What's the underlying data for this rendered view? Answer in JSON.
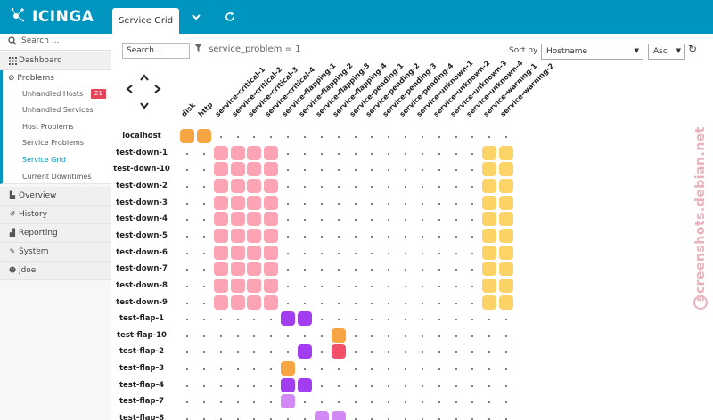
{
  "brand": "ICINGA",
  "tabs": {
    "active_label": "Service Grid"
  },
  "sidebar": {
    "search_label": "Search ...",
    "dashboard": "Dashboard",
    "problems": {
      "label": "Problems",
      "items": [
        {
          "label": "Unhandled Hosts",
          "badge": "21"
        },
        {
          "label": "Unhandled Services"
        },
        {
          "label": "Host Problems"
        },
        {
          "label": "Service Problems"
        },
        {
          "label": "Service Grid",
          "active": true
        },
        {
          "label": "Current Downtimes"
        }
      ]
    },
    "items": [
      {
        "label": "Overview"
      },
      {
        "label": "History"
      },
      {
        "label": "Reporting"
      },
      {
        "label": "System"
      },
      {
        "label": "jdoe"
      }
    ]
  },
  "toolbar": {
    "search_value": "Search...",
    "filter_text": "service_problem = 1",
    "sort_label": "Sort by",
    "sort_field": "Hostname",
    "sort_dir": "Asc"
  },
  "grid": {
    "services": [
      "disk",
      "http",
      "service-critical-1",
      "service-critical-2",
      "service-critical-3",
      "service-critical-4",
      "service-flapping-1",
      "service-flapping-2",
      "service-flapping-3",
      "service-flapping-4",
      "service-pending-1",
      "service-pending-2",
      "service-pending-3",
      "service-pending-4",
      "service-unknown-1",
      "service-unknown-2",
      "service-unknown-3",
      "service-unknown-4",
      "service-warning-1",
      "service-warning-2"
    ],
    "hosts": [
      {
        "name": "localhost",
        "cells": {
          "0": "warning",
          "1": "warning"
        }
      },
      {
        "name": "test-down-1",
        "cells": {
          "2": "critical",
          "3": "critical",
          "4": "critical",
          "5": "critical",
          "18": "pending",
          "19": "pending"
        }
      },
      {
        "name": "test-down-10",
        "cells": {
          "2": "critical",
          "3": "critical",
          "4": "critical",
          "5": "critical",
          "18": "pending",
          "19": "pending"
        }
      },
      {
        "name": "test-down-2",
        "cells": {
          "2": "critical",
          "3": "critical",
          "4": "critical",
          "5": "critical",
          "18": "pending",
          "19": "pending"
        }
      },
      {
        "name": "test-down-3",
        "cells": {
          "2": "critical",
          "3": "critical",
          "4": "critical",
          "5": "critical",
          "18": "pending",
          "19": "pending"
        }
      },
      {
        "name": "test-down-4",
        "cells": {
          "2": "critical",
          "3": "critical",
          "4": "critical",
          "5": "critical",
          "18": "pending",
          "19": "pending"
        }
      },
      {
        "name": "test-down-5",
        "cells": {
          "2": "critical",
          "3": "critical",
          "4": "critical",
          "5": "critical",
          "18": "pending",
          "19": "pending"
        }
      },
      {
        "name": "test-down-6",
        "cells": {
          "2": "critical",
          "3": "critical",
          "4": "critical",
          "5": "critical",
          "18": "pending",
          "19": "pending"
        }
      },
      {
        "name": "test-down-7",
        "cells": {
          "2": "critical",
          "3": "critical",
          "4": "critical",
          "5": "critical",
          "18": "pending",
          "19": "pending"
        }
      },
      {
        "name": "test-down-8",
        "cells": {
          "2": "critical",
          "3": "critical",
          "4": "critical",
          "5": "critical",
          "18": "pending",
          "19": "pending"
        }
      },
      {
        "name": "test-down-9",
        "cells": {
          "2": "critical",
          "3": "critical",
          "4": "critical",
          "5": "critical",
          "18": "pending",
          "19": "pending"
        }
      },
      {
        "name": "test-flap-1",
        "cells": {
          "6": "unknown",
          "7": "unknown"
        }
      },
      {
        "name": "test-flap-10",
        "cells": {
          "9": "warning"
        }
      },
      {
        "name": "test-flap-2",
        "cells": {
          "7": "unknown",
          "9": "critical-hard"
        }
      },
      {
        "name": "test-flap-3",
        "cells": {
          "6": "warning"
        }
      },
      {
        "name": "test-flap-4",
        "cells": {
          "6": "unknown",
          "7": "unknown"
        }
      },
      {
        "name": "test-flap-7",
        "cells": {
          "6": "unknown-light"
        }
      },
      {
        "name": "test-flap-8",
        "cells": {
          "8": "unknown-light",
          "9": "unknown-light"
        }
      }
    ]
  },
  "colors": {
    "brand": "#0095bf",
    "warning": "#f7a543",
    "critical": "#fca3b4",
    "critical-hard": "#f2506a",
    "pending": "#fbd366",
    "unknown": "#a33ef0",
    "unknown-light": "#d289f5",
    "badge": "#e3455a"
  },
  "watermark": "screenshots.debian.net"
}
